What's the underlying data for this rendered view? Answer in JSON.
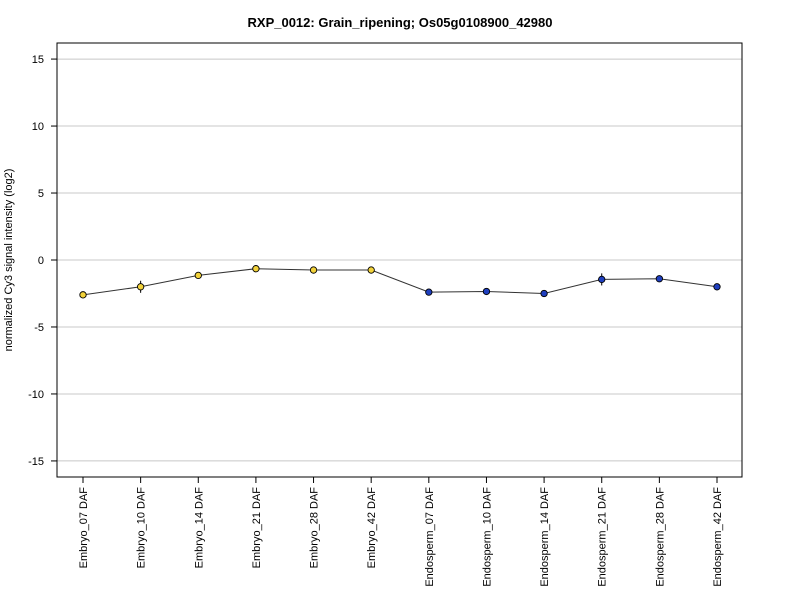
{
  "chart_data": {
    "type": "line",
    "title": "RXP_0012: Grain_ripening; Os05g0108900_42980",
    "xlabel": "",
    "ylabel": "normalized Cy3 signal intensity (log2)",
    "ylim": [
      -16.2,
      16.2
    ],
    "yticks": [
      -15,
      -10,
      -5,
      0,
      5,
      10,
      15
    ],
    "grid": true,
    "categories": [
      "Embryo_07 DAF",
      "Embryo_10 DAF",
      "Embryo_14 DAF",
      "Embryo_21 DAF",
      "Embryo_28 DAF",
      "Embryo_42 DAF",
      "Endosperm_07 DAF",
      "Endosperm_10 DAF",
      "Endosperm_14 DAF",
      "Endosperm_21 DAF",
      "Endosperm_28 DAF",
      "Endosperm_42 DAF"
    ],
    "series": [
      {
        "values": [
          -2.6,
          -2.0,
          -1.15,
          -0.65,
          -0.75,
          -0.75,
          -2.4,
          -2.35,
          -2.5,
          -1.45,
          -1.4,
          -2.0
        ],
        "error": [
          0.15,
          0.45,
          0.15,
          0.1,
          0.1,
          0.1,
          0.1,
          0.1,
          0.1,
          0.45,
          0.1,
          0.15
        ],
        "point_colors": [
          "#f2d23a",
          "#f2d23a",
          "#f2d23a",
          "#f2d23a",
          "#f2d23a",
          "#f2d23a",
          "#1f3fbf",
          "#1f3fbf",
          "#1f3fbf",
          "#1f3fbf",
          "#1f3fbf",
          "#1f3fbf"
        ]
      }
    ]
  }
}
